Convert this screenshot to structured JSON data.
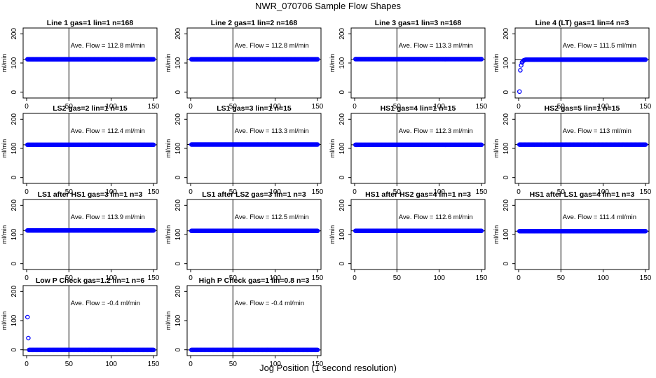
{
  "page": {
    "title": "NWR_070706  Sample Flow Shapes",
    "xlabel": "Jog Position (1 second resolution)"
  },
  "style": {
    "point_color": "#0000ff",
    "line_color": "#000000"
  },
  "chart_data": [
    {
      "type": "scatter",
      "title": "Line 1 gas=1 lin=1 n=168",
      "ylabel": "ml/min",
      "xlim": [
        0,
        150
      ],
      "ylim": [
        -20,
        220
      ],
      "xticks": [
        0,
        50,
        100,
        150
      ],
      "yticks": [
        0,
        100,
        200
      ],
      "vline_x": 50,
      "hline_y": 112.8,
      "annotation": "Ave. Flow =  112.8  ml/min",
      "points": [
        [
          1,
          112.8
        ],
        [
          150,
          112.8
        ]
      ]
    },
    {
      "type": "scatter",
      "title": "Line 2 gas=1 lin=2 n=168",
      "ylabel": "ml/min",
      "xlim": [
        0,
        150
      ],
      "ylim": [
        -20,
        220
      ],
      "xticks": [
        0,
        50,
        100,
        150
      ],
      "yticks": [
        0,
        100,
        200
      ],
      "vline_x": 50,
      "hline_y": 112.8,
      "annotation": "Ave. Flow =  112.8  ml/min",
      "points": [
        [
          1,
          112.8
        ],
        [
          150,
          112.8
        ]
      ]
    },
    {
      "type": "scatter",
      "title": "Line 3 gas=1 lin=3 n=168",
      "ylabel": "ml/min",
      "xlim": [
        0,
        150
      ],
      "ylim": [
        -20,
        220
      ],
      "xticks": [
        0,
        50,
        100,
        150
      ],
      "yticks": [
        0,
        100,
        200
      ],
      "vline_x": 50,
      "hline_y": 113.3,
      "annotation": "Ave. Flow =  113.3  ml/min",
      "points": [
        [
          1,
          113.3
        ],
        [
          150,
          113.3
        ]
      ]
    },
    {
      "type": "scatter",
      "title": "Line 4 (LT) gas=1 lin=4 n=3",
      "ylabel": "ml/min",
      "xlim": [
        0,
        150
      ],
      "ylim": [
        -20,
        220
      ],
      "xticks": [
        0,
        50,
        100,
        150
      ],
      "yticks": [
        0,
        100,
        200
      ],
      "vline_x": 50,
      "hline_y": 111.5,
      "annotation": "Ave. Flow =  111.5  ml/min",
      "points": [
        [
          1,
          2
        ],
        [
          2,
          75
        ],
        [
          3,
          92
        ],
        [
          4,
          102
        ],
        [
          5,
          106
        ],
        [
          6,
          109
        ],
        [
          7,
          110
        ],
        [
          8,
          111
        ],
        [
          150,
          111.5
        ]
      ]
    },
    {
      "type": "scatter",
      "title": "LS2 gas=2 lin=1 n=15",
      "ylabel": "ml/min",
      "xlim": [
        0,
        150
      ],
      "ylim": [
        -20,
        220
      ],
      "xticks": [
        0,
        50,
        100,
        150
      ],
      "yticks": [
        0,
        100,
        200
      ],
      "vline_x": 50,
      "hline_y": 112.4,
      "annotation": "Ave. Flow =  112.4  ml/min",
      "points": [
        [
          1,
          112.4
        ],
        [
          150,
          112.4
        ]
      ]
    },
    {
      "type": "scatter",
      "title": "LS1 gas=3 lin=1 n=15",
      "ylabel": "ml/min",
      "xlim": [
        0,
        150
      ],
      "ylim": [
        -20,
        220
      ],
      "xticks": [
        0,
        50,
        100,
        150
      ],
      "yticks": [
        0,
        100,
        200
      ],
      "vline_x": 50,
      "hline_y": 113.3,
      "annotation": "Ave. Flow =  113.3  ml/min",
      "points": [
        [
          1,
          113.3
        ],
        [
          150,
          113.3
        ]
      ]
    },
    {
      "type": "scatter",
      "title": "HS1 gas=4 lin=1 n=15",
      "ylabel": "ml/min",
      "xlim": [
        0,
        150
      ],
      "ylim": [
        -20,
        220
      ],
      "xticks": [
        0,
        50,
        100,
        150
      ],
      "yticks": [
        0,
        100,
        200
      ],
      "vline_x": 50,
      "hline_y": 112.3,
      "annotation": "Ave. Flow =  112.3  ml/min",
      "points": [
        [
          1,
          112.3
        ],
        [
          150,
          112.3
        ]
      ]
    },
    {
      "type": "scatter",
      "title": "HS2 gas=5 lin=1 n=15",
      "ylabel": "ml/min",
      "xlim": [
        0,
        150
      ],
      "ylim": [
        -20,
        220
      ],
      "xticks": [
        0,
        50,
        100,
        150
      ],
      "yticks": [
        0,
        100,
        200
      ],
      "vline_x": 50,
      "hline_y": 113,
      "annotation": "Ave. Flow =  113  ml/min",
      "points": [
        [
          1,
          113
        ],
        [
          150,
          113
        ]
      ]
    },
    {
      "type": "scatter",
      "title": "LS1 after HS1 gas=3 lin=1 n=3",
      "ylabel": "ml/min",
      "xlim": [
        0,
        150
      ],
      "ylim": [
        -20,
        220
      ],
      "xticks": [
        0,
        50,
        100,
        150
      ],
      "yticks": [
        0,
        100,
        200
      ],
      "vline_x": 50,
      "hline_y": 113.9,
      "annotation": "Ave. Flow =  113.9  ml/min",
      "points": [
        [
          1,
          113.9
        ],
        [
          150,
          113.9
        ]
      ]
    },
    {
      "type": "scatter",
      "title": "LS1 after LS2 gas=3 lin=1 n=3",
      "ylabel": "ml/min",
      "xlim": [
        0,
        150
      ],
      "ylim": [
        -20,
        220
      ],
      "xticks": [
        0,
        50,
        100,
        150
      ],
      "yticks": [
        0,
        100,
        200
      ],
      "vline_x": 50,
      "hline_y": 112.5,
      "annotation": "Ave. Flow =  112.5  ml/min",
      "points": [
        [
          1,
          112.5
        ],
        [
          150,
          112.5
        ]
      ]
    },
    {
      "type": "scatter",
      "title": "HS1 after HS2 gas=4 lin=1 n=3",
      "ylabel": "ml/min",
      "xlim": [
        0,
        150
      ],
      "ylim": [
        -20,
        220
      ],
      "xticks": [
        0,
        50,
        100,
        150
      ],
      "yticks": [
        0,
        100,
        200
      ],
      "vline_x": 50,
      "hline_y": 112.6,
      "annotation": "Ave. Flow =  112.6  ml/min",
      "points": [
        [
          1,
          112.6
        ],
        [
          150,
          112.6
        ]
      ]
    },
    {
      "type": "scatter",
      "title": "HS1 after LS1 gas=4 lin=1 n=3",
      "ylabel": "ml/min",
      "xlim": [
        0,
        150
      ],
      "ylim": [
        -20,
        220
      ],
      "xticks": [
        0,
        50,
        100,
        150
      ],
      "yticks": [
        0,
        100,
        200
      ],
      "vline_x": 50,
      "hline_y": 111.4,
      "annotation": "Ave. Flow =  111.4  ml/min",
      "points": [
        [
          1,
          111.4
        ],
        [
          150,
          111.4
        ]
      ]
    },
    {
      "type": "scatter",
      "title": "Low P Check gas=1.2 lin=1 n=6",
      "ylabel": "ml/min",
      "xlim": [
        0,
        150
      ],
      "ylim": [
        -20,
        220
      ],
      "xticks": [
        0,
        50,
        100,
        150
      ],
      "yticks": [
        0,
        100,
        200
      ],
      "vline_x": 50,
      "hline_y": -0.4,
      "annotation": "Ave. Flow =  -0.4  ml/min",
      "points": [
        [
          1,
          112
        ],
        [
          2,
          40
        ],
        [
          150,
          -0.4
        ]
      ]
    },
    {
      "type": "scatter",
      "title": "High P Check gas=1 lin=0.8 n=3",
      "ylabel": "ml/min",
      "xlim": [
        0,
        150
      ],
      "ylim": [
        -20,
        220
      ],
      "xticks": [
        0,
        50,
        100,
        150
      ],
      "yticks": [
        0,
        100,
        200
      ],
      "vline_x": 50,
      "hline_y": -0.4,
      "annotation": "Ave. Flow =  -0.4  ml/min",
      "points": [
        [
          1,
          -0.4
        ],
        [
          150,
          -0.4
        ]
      ]
    }
  ]
}
